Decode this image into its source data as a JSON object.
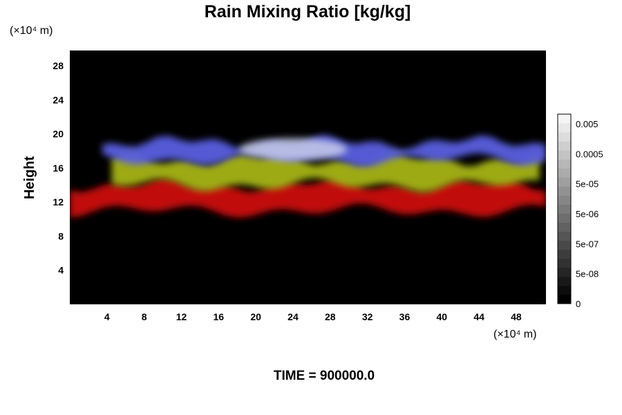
{
  "chart_data": {
    "type": "heatmap",
    "title": "Rain Mixing Ratio [kg/kg]",
    "ylabel": "Height",
    "x_unit_label": "(×10⁴ m)",
    "y_unit_label": "(×10⁴ m)",
    "x_ticks": [
      4,
      8,
      12,
      16,
      20,
      24,
      28,
      32,
      36,
      40,
      44,
      48
    ],
    "y_ticks": [
      4,
      8,
      12,
      16,
      20,
      24,
      28
    ],
    "xlim": [
      0,
      51.2
    ],
    "ylim": [
      0,
      29.8
    ],
    "bands": [
      {
        "name": "red",
        "color": "#cc0c0c",
        "y_range": [
          10.5,
          14.5
        ],
        "x_range": [
          0,
          51.2
        ]
      },
      {
        "name": "yellow",
        "color": "#a6b414",
        "y_range": [
          13.5,
          17.5
        ],
        "x_range": [
          4.5,
          50.5
        ]
      },
      {
        "name": "blue",
        "color": "#5a5ee0",
        "y_range": [
          16.5,
          19.5
        ],
        "x_range": [
          3.5,
          51.2
        ]
      }
    ],
    "colorbar": {
      "tick_labels": [
        "0.005",
        "0.0005",
        "5e-05",
        "5e-06",
        "5e-07",
        "5e-08",
        "0"
      ],
      "levels": 21,
      "color_min": "#000000",
      "color_max": "#f4f4f4"
    },
    "footer": "TIME = 900000.0"
  }
}
